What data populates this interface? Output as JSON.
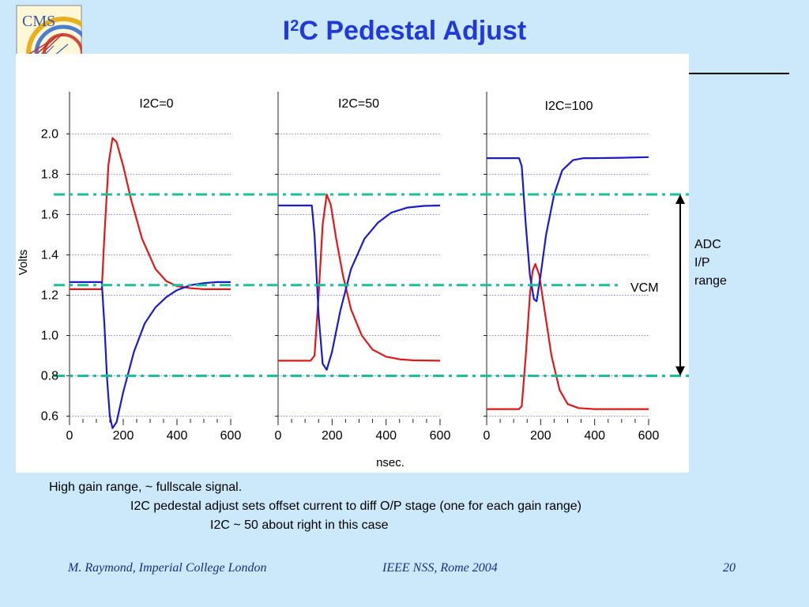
{
  "header": {
    "title_pre": "I",
    "title_sup": "2",
    "title_post": "C Pedestal Adjust",
    "logo_text": "CMS"
  },
  "chart_data": {
    "type": "line",
    "ylabel": "Volts",
    "xlabel": "nsec.",
    "ylim": [
      0.5,
      2.1
    ],
    "yticks": [
      0.6,
      0.8,
      1.0,
      1.2,
      1.4,
      1.6,
      1.8,
      2.0
    ],
    "ytick_labels": [
      "0.6",
      "0.8",
      "1.0",
      "1.2",
      "1.4",
      "1.6",
      "1.8",
      "2.0"
    ],
    "xlim": [
      0,
      600
    ],
    "xticks": [
      0,
      200,
      400,
      600
    ],
    "xtick_labels": [
      "0",
      "200",
      "400",
      "600"
    ],
    "grid": "horizontal dotted",
    "panels": [
      {
        "title": "I2C=0",
        "series": [
          {
            "color": "#e01818",
            "x": [
              0,
              120,
              130,
              145,
              160,
              175,
              200,
              230,
              270,
              320,
              360,
              400,
              450,
              500,
              550,
              600
            ],
            "y": [
              1.23,
              1.23,
              1.5,
              1.85,
              1.98,
              1.96,
              1.84,
              1.67,
              1.48,
              1.33,
              1.27,
              1.245,
              1.235,
              1.23,
              1.23,
              1.23
            ]
          },
          {
            "color": "#1a1ad0",
            "x": [
              0,
              120,
              130,
              140,
              150,
              160,
              175,
              200,
              240,
              280,
              320,
              360,
              400,
              450,
              500,
              550,
              600
            ],
            "y": [
              1.265,
              1.265,
              1.05,
              0.78,
              0.6,
              0.54,
              0.57,
              0.72,
              0.92,
              1.06,
              1.14,
              1.19,
              1.225,
              1.25,
              1.26,
              1.265,
              1.265
            ]
          }
        ]
      },
      {
        "title": "I2C=50",
        "series": [
          {
            "color": "#e01818",
            "x": [
              0,
              120,
              135,
              150,
              165,
              180,
              195,
              215,
              240,
              270,
              310,
              350,
              400,
              450,
              500,
              600
            ],
            "y": [
              0.875,
              0.875,
              0.9,
              1.2,
              1.55,
              1.7,
              1.65,
              1.48,
              1.3,
              1.13,
              1.0,
              0.93,
              0.895,
              0.882,
              0.877,
              0.875
            ]
          },
          {
            "color": "#1a1ad0",
            "x": [
              0,
              125,
              135,
              150,
              165,
              180,
              200,
              230,
              270,
              320,
              370,
              420,
              480,
              540,
              600
            ],
            "y": [
              1.645,
              1.645,
              1.5,
              1.1,
              0.86,
              0.83,
              0.92,
              1.12,
              1.33,
              1.48,
              1.56,
              1.61,
              1.635,
              1.643,
              1.645
            ]
          }
        ]
      },
      {
        "title": "I2C=100",
        "series": [
          {
            "color": "#e01818",
            "x": [
              0,
              120,
              130,
              145,
              160,
              170,
              180,
              195,
              215,
              240,
              270,
              300,
              340,
              400,
              500,
              600
            ],
            "y": [
              0.635,
              0.635,
              0.65,
              0.9,
              1.2,
              1.32,
              1.355,
              1.3,
              1.12,
              0.9,
              0.73,
              0.66,
              0.64,
              0.635,
              0.635,
              0.635
            ]
          },
          {
            "color": "#1a1ad0",
            "x": [
              0,
              120,
              130,
              145,
              160,
              175,
              185,
              200,
              220,
              250,
              280,
              320,
              360,
              400,
              500,
              600
            ],
            "y": [
              1.88,
              1.88,
              1.84,
              1.55,
              1.3,
              1.18,
              1.17,
              1.3,
              1.5,
              1.7,
              1.82,
              1.87,
              1.88,
              1.88,
              1.882,
              1.885
            ]
          }
        ]
      }
    ],
    "reference_lines": [
      {
        "value": 1.7,
        "color": "#1bbf9a"
      },
      {
        "value": 1.25,
        "color": "#1bbf9a",
        "label": "VCM"
      },
      {
        "value": 0.8,
        "color": "#1bbf9a"
      }
    ],
    "range_annotation": {
      "from": 0.8,
      "to": 1.7,
      "label_lines": [
        "ADC",
        "I/P",
        "range"
      ]
    }
  },
  "notes": [
    "High gain range, ~ fullscale signal.",
    "I2C pedestal adjust sets offset current to diff O/P stage (one for each gain range)",
    "I2C ~ 50 about right in this case"
  ],
  "footer": {
    "author": "M. Raymond, Imperial College London",
    "conference": "IEEE NSS, Rome 2004",
    "page": "20"
  }
}
